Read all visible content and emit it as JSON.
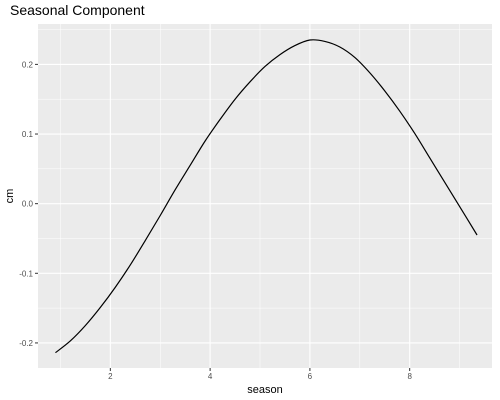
{
  "chart_data": {
    "type": "line",
    "title": "Seasonal Component",
    "xlabel": "season",
    "ylabel": "cm",
    "xlim": [
      0.55,
      9.65
    ],
    "ylim": [
      -0.236,
      0.258
    ],
    "x_ticks": [
      2,
      4,
      6,
      8
    ],
    "x_tick_labels": [
      "2",
      "4",
      "6",
      "8"
    ],
    "y_ticks": [
      -0.2,
      -0.1,
      0.0,
      0.1,
      0.2
    ],
    "y_tick_labels": [
      "-0.2",
      "-0.1",
      "0.0",
      "0.1",
      "0.2"
    ],
    "grid": true,
    "legend": "none",
    "colors": {
      "panel": "#ebebeb",
      "grid_major": "#ffffff",
      "line": "#000000"
    },
    "series": [
      {
        "x": [
          0.9,
          1.2,
          1.5,
          1.8,
          2.1,
          2.4,
          2.7,
          3.0,
          3.3,
          3.6,
          3.9,
          4.2,
          4.5,
          4.8,
          5.1,
          5.4,
          5.7,
          6.0,
          6.3,
          6.6,
          6.9,
          7.2,
          7.5,
          7.8,
          8.1,
          8.4,
          8.7,
          9.0,
          9.35
        ],
        "y": [
          -0.214,
          -0.197,
          -0.175,
          -0.149,
          -0.12,
          -0.088,
          -0.053,
          -0.017,
          0.02,
          0.055,
          0.09,
          0.121,
          0.15,
          0.175,
          0.197,
          0.214,
          0.227,
          0.235,
          0.233,
          0.225,
          0.21,
          0.188,
          0.162,
          0.133,
          0.101,
          0.066,
          0.031,
          -0.004,
          -0.045
        ]
      }
    ]
  }
}
